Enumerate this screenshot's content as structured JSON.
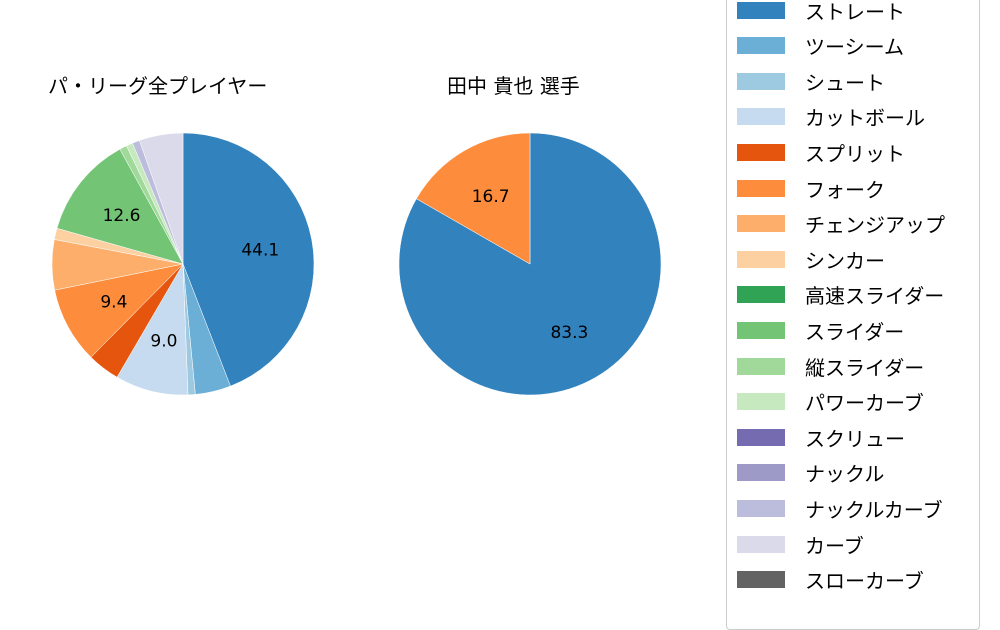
{
  "chart_data": [
    {
      "type": "pie",
      "title": "パ・リーグ全プレイヤー",
      "start_angle": 90,
      "direction": "clockwise",
      "categories": [
        "ストレート",
        "ツーシーム",
        "シュート",
        "カットボール",
        "スプリット",
        "フォーク",
        "チェンジアップ",
        "シンカー",
        "高速スライダー",
        "スライダー",
        "縦スライダー",
        "パワーカーブ",
        "スクリュー",
        "ナックル",
        "ナックルカーブ",
        "カーブ",
        "スローカーブ"
      ],
      "values": [
        44.1,
        4.4,
        0.9,
        9.0,
        4.0,
        9.4,
        6.2,
        1.4,
        0.0,
        12.6,
        0.9,
        0.8,
        0.0,
        0.0,
        0.9,
        5.4,
        0.0
      ],
      "labels_shown": [
        "44.1",
        "9.0",
        "9.4",
        "12.6"
      ]
    },
    {
      "type": "pie",
      "title": "田中 貴也  選手",
      "start_angle": 90,
      "direction": "clockwise",
      "categories": [
        "ストレート",
        "フォーク"
      ],
      "values": [
        83.3,
        16.7
      ],
      "labels_shown": [
        "83.3",
        "16.7"
      ]
    }
  ],
  "titles": {
    "left": "パ・リーグ全プレイヤー",
    "right": "田中 貴也  選手"
  },
  "legend": [
    {
      "label": "ストレート",
      "color": "#3182bd"
    },
    {
      "label": "ツーシーム",
      "color": "#6baed6"
    },
    {
      "label": "シュート",
      "color": "#9ecae1"
    },
    {
      "label": "カットボール",
      "color": "#c6dbef"
    },
    {
      "label": "スプリット",
      "color": "#e6550d"
    },
    {
      "label": "フォーク",
      "color": "#fd8d3c"
    },
    {
      "label": "チェンジアップ",
      "color": "#fdae6b"
    },
    {
      "label": "シンカー",
      "color": "#fdd0a2"
    },
    {
      "label": "高速スライダー",
      "color": "#31a354"
    },
    {
      "label": "スライダー",
      "color": "#74c476"
    },
    {
      "label": "縦スライダー",
      "color": "#a1d99b"
    },
    {
      "label": "パワーカーブ",
      "color": "#c7e9c0"
    },
    {
      "label": "スクリュー",
      "color": "#756bb1"
    },
    {
      "label": "ナックル",
      "color": "#9e9ac8"
    },
    {
      "label": "ナックルカーブ",
      "color": "#bcbddc"
    },
    {
      "label": "カーブ",
      "color": "#dadaeb"
    },
    {
      "label": "スローカーブ",
      "color": "#636363"
    }
  ]
}
